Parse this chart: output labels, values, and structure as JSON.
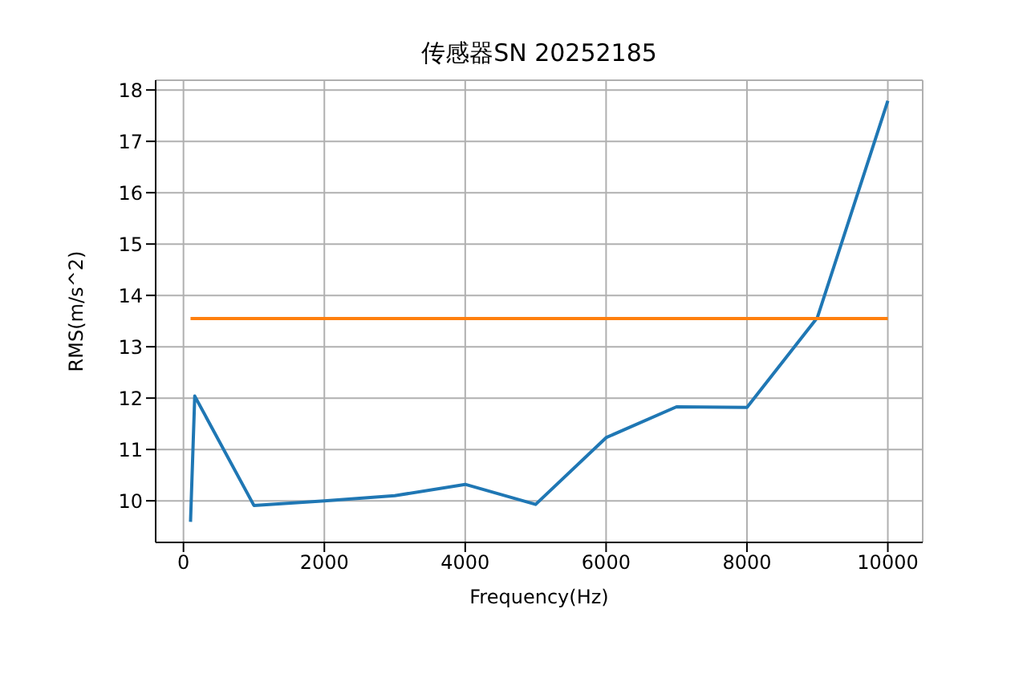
{
  "chart_data": {
    "type": "line",
    "title": "传感器SN 20252185",
    "xlabel": "Frequency(Hz)",
    "ylabel": "RMS(m/s^2)",
    "xlim": [
      -395,
      10495
    ],
    "xticks": [
      0,
      2000,
      4000,
      6000,
      8000,
      10000
    ],
    "ylim": [
      9.19,
      18.19
    ],
    "yticks": [
      10,
      11,
      12,
      13,
      14,
      15,
      16,
      17,
      18
    ],
    "grid": true,
    "series": [
      {
        "color": "#1f77b4",
        "x": [
          100,
          160,
          1000,
          2000,
          3000,
          4000,
          5000,
          6000,
          7000,
          8000,
          9000,
          10000
        ],
        "values": [
          9.59,
          12.04,
          9.91,
          10.0,
          10.1,
          10.32,
          9.93,
          11.23,
          11.83,
          11.82,
          13.57,
          17.79
        ]
      },
      {
        "color": "#ff7f0e",
        "x": [
          100,
          10000
        ],
        "values": [
          13.55,
          13.55
        ]
      }
    ]
  }
}
